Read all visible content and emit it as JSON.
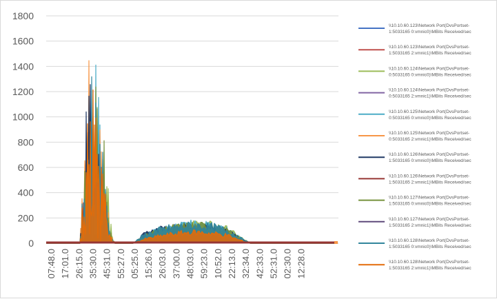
{
  "chart_data": {
    "type": "line",
    "title": "",
    "xlabel": "",
    "ylabel": "",
    "ylim": [
      0,
      1800
    ],
    "y_ticks": [
      0,
      200,
      400,
      600,
      800,
      1000,
      1200,
      1400,
      1600,
      1800
    ],
    "x_tick_labels": [
      "07:48.0",
      "17:01.0",
      "26:15.0",
      "35:30.0",
      "45:31.0",
      "55:27.0",
      "05:25.0",
      "15:26.0",
      "26:03.0",
      "37:00.0",
      "48:03.0",
      "59:23.0",
      "10:52.0",
      "22:13.0",
      "32:34.0",
      "42:33.0",
      "52:31.0",
      "02:30.0",
      "12:28.0"
    ],
    "grid": true,
    "legend_position": "right",
    "series": [
      {
        "name": "\\\\10.10.60.123\\Network Port(DvsPortset-1:5033165 0:vmnic0)\\MBits Received/sec",
        "color": "#4472c4",
        "burst1": [
          0,
          0,
          420,
          900,
          1150,
          800,
          380,
          40,
          0
        ],
        "burst2": [
          0,
          25,
          45,
          60,
          70,
          75,
          72,
          60,
          40,
          15,
          0
        ]
      },
      {
        "name": "\\\\10.10.60.123\\Network Port(DvsPortset-1:5033165 2:vmnic1)\\MBits Received/sec",
        "color": "#c0504d",
        "burst1": [
          0,
          0,
          380,
          760,
          900,
          650,
          300,
          20,
          0
        ],
        "burst2": [
          0,
          60,
          80,
          95,
          105,
          110,
          108,
          100,
          80,
          40,
          0
        ]
      },
      {
        "name": "\\\\10.10.60.124\\Network Port(DvsPortset-0:5033165 0:vmnic0)\\MBits Received/sec",
        "color": "#9bbb59",
        "burst1": [
          0,
          0,
          500,
          1050,
          1650,
          950,
          850,
          200,
          0
        ],
        "burst2": [
          0,
          70,
          110,
          140,
          165,
          180,
          190,
          170,
          140,
          70,
          0
        ]
      },
      {
        "name": "\\\\10.10.60.124\\Network Port(DvsPortset-0:5033165 2:vmnic1)\\MBits Received/sec",
        "color": "#8064a2",
        "burst1": [
          0,
          0,
          350,
          700,
          820,
          560,
          260,
          10,
          0
        ],
        "burst2": [
          0,
          35,
          55,
          70,
          80,
          85,
          82,
          75,
          55,
          20,
          0
        ]
      },
      {
        "name": "\\\\10.10.60.125\\Network Port(DvsPortset-0:5033165 0:vmnic0)\\MBits Received/sec",
        "color": "#4bacc6",
        "burst1": [
          0,
          0,
          650,
          1100,
          1540,
          1000,
          600,
          80,
          0
        ],
        "burst2": [
          0,
          80,
          120,
          150,
          170,
          185,
          180,
          165,
          130,
          60,
          0
        ]
      },
      {
        "name": "\\\\10.10.60.125\\Network Port(DvsPortset-0:5033165 2:vmnic1)\\MBits Received/sec",
        "color": "#f79646",
        "burst1": [
          0,
          0,
          1230,
          1700,
          1300,
          900,
          650,
          100,
          0
        ],
        "burst2": [
          0,
          45,
          70,
          90,
          105,
          115,
          110,
          100,
          90,
          40,
          0
        ]
      },
      {
        "name": "\\\\10.10.60.126\\Network Port(DvsPortset-1:5033165 0:vmnic0)\\MBits Received/sec",
        "color": "#1f3864",
        "burst1": [
          0,
          0,
          980,
          1340,
          1360,
          700,
          500,
          60,
          0
        ],
        "burst2": [
          0,
          90,
          130,
          150,
          160,
          170,
          165,
          150,
          120,
          55,
          0
        ]
      },
      {
        "name": "\\\\10.10.60.126\\Network Port(DvsPortset-1:5033165 2:vmnic1)\\MBits Received/sec",
        "color": "#963634",
        "burst1": [
          0,
          0,
          600,
          850,
          980,
          700,
          420,
          50,
          0
        ],
        "burst2": [
          0,
          50,
          75,
          95,
          110,
          120,
          118,
          105,
          85,
          35,
          0
        ]
      },
      {
        "name": "\\\\10.10.60.127\\Network Port(DvsPortset-1:5033165 0:vmnic0)\\MBits Received/sec",
        "color": "#76923c",
        "burst1": [
          0,
          0,
          700,
          1200,
          1660,
          1000,
          820,
          120,
          0
        ],
        "burst2": [
          0,
          75,
          115,
          145,
          160,
          175,
          170,
          155,
          125,
          55,
          0
        ]
      },
      {
        "name": "\\\\10.10.60.127\\Network Port(DvsPortset-1:5033165 2:vmnic1)\\MBits Received/sec",
        "color": "#5f497a",
        "burst1": [
          0,
          0,
          400,
          720,
          880,
          600,
          300,
          20,
          0
        ],
        "burst2": [
          0,
          30,
          50,
          65,
          75,
          80,
          78,
          70,
          50,
          20,
          0
        ]
      },
      {
        "name": "\\\\10.10.60.128\\Network Port(DvsPortset-1:5033165 0:vmnic0)\\MBits Received/sec",
        "color": "#31859c",
        "burst1": [
          0,
          0,
          900,
          1280,
          1450,
          910,
          560,
          70,
          0
        ],
        "burst2": [
          0,
          85,
          125,
          150,
          165,
          175,
          172,
          160,
          130,
          60,
          0
        ]
      },
      {
        "name": "\\\\10.10.60.128\\Network Port(DvsPortset-1:5033165 2:vmnic1)\\MBits Received/sec",
        "color": "#e36c09",
        "burst1": [
          0,
          0,
          800,
          1180,
          1300,
          820,
          660,
          90,
          0
        ],
        "burst2": [
          0,
          40,
          65,
          85,
          100,
          110,
          106,
          95,
          80,
          35,
          0
        ]
      }
    ]
  }
}
